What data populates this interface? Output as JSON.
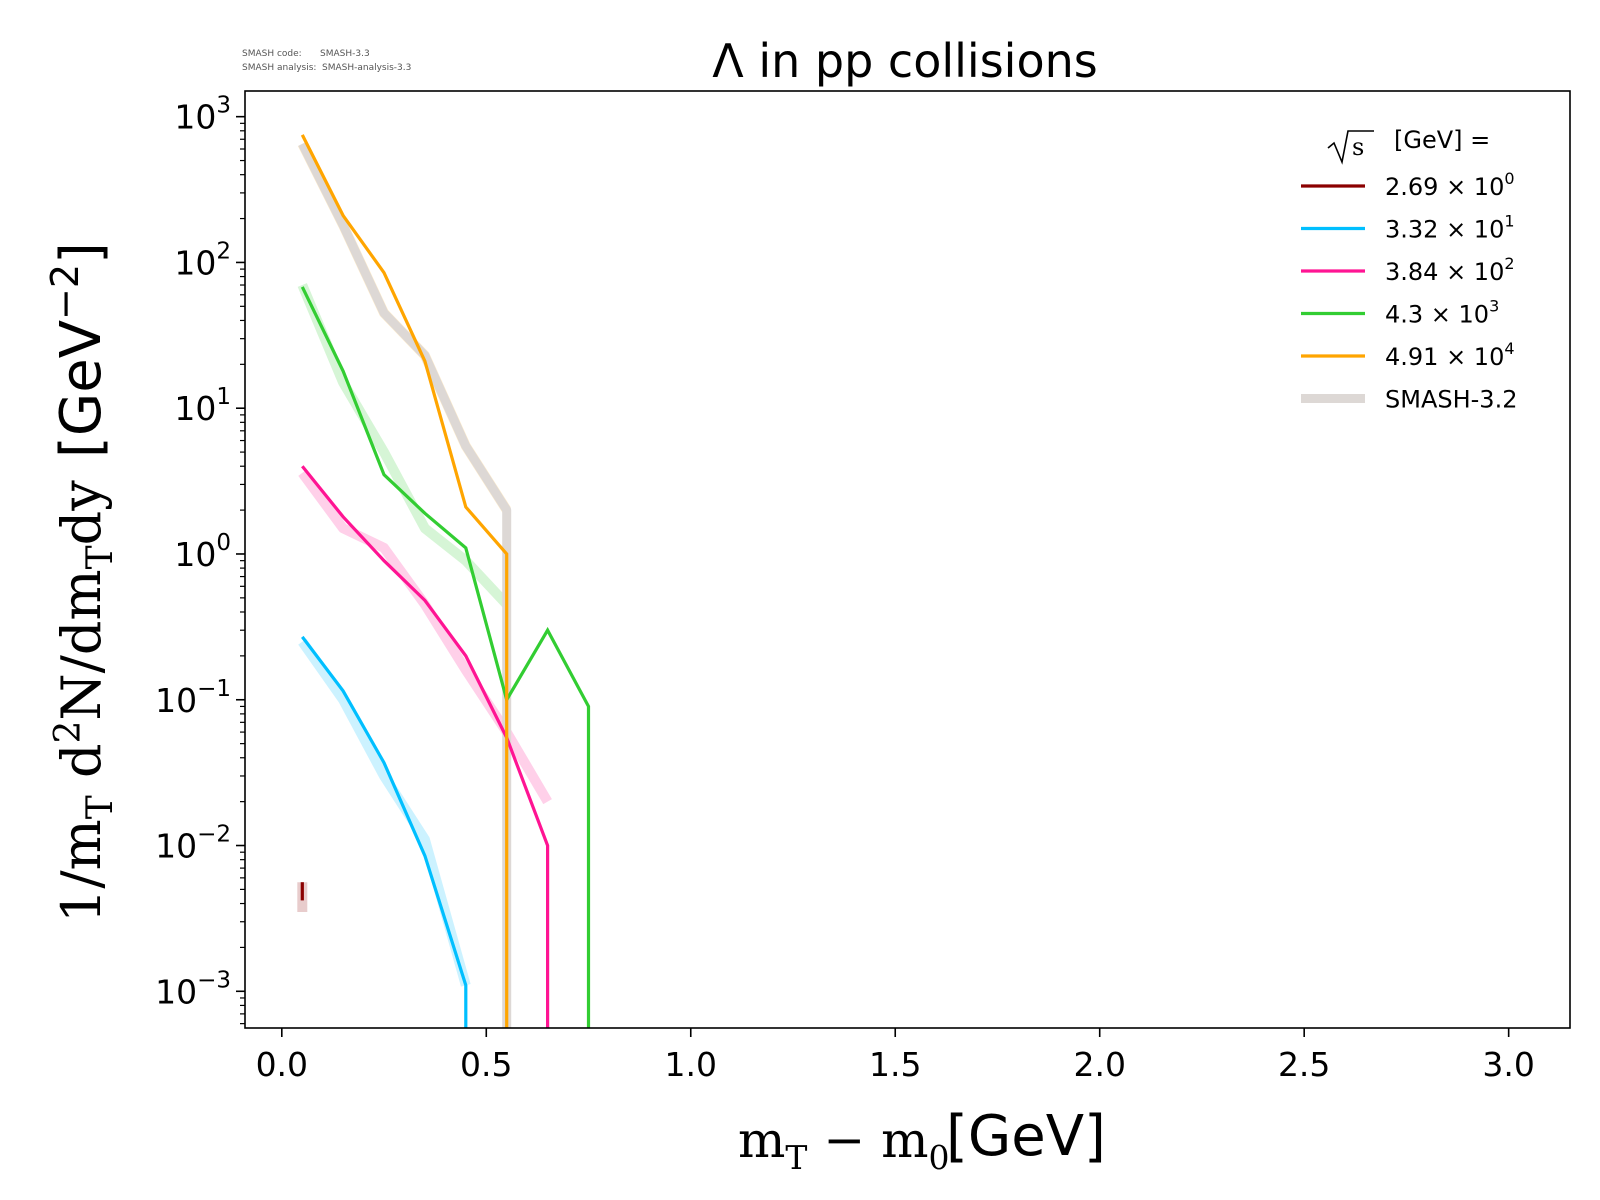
{
  "meta": {
    "code_label": "SMASH code:",
    "code_value": "SMASH-3.3",
    "analysis_label": "SMASH analysis:",
    "analysis_value": "SMASH-analysis-3.3"
  },
  "chart_data": {
    "type": "line",
    "title": "Λ in pp collisions",
    "xlabel": "m_T − m_0 [GeV]",
    "ylabel": "1/m_T d²N/dm_Tdy [GeV⁻²]",
    "x_axis": {
      "scale": "linear",
      "range": [
        -0.09,
        3.15
      ],
      "ticks": [
        "0.0",
        "0.5",
        "1.0",
        "1.5",
        "2.0",
        "2.5",
        "3.0"
      ]
    },
    "y_axis": {
      "scale": "log",
      "range": [
        0.00056,
        1500
      ],
      "ticks": [
        "10^-3",
        "10^-2",
        "10^-1",
        "10^0",
        "10^1",
        "10^2",
        "10^3"
      ]
    },
    "legend_title": "√s  [GeV] =",
    "legend_position": "top-right",
    "series": [
      {
        "name": "2.69 × 10^0",
        "color": "#8b0000",
        "x": [
          0.05,
          0.05
        ],
        "y": [
          0.0056,
          0.0042
        ],
        "ref": {
          "x": [
            0.05,
            0.05
          ],
          "y": [
            0.0056,
            0.0035
          ]
        }
      },
      {
        "name": "3.32 × 10^1",
        "color": "#00bfff",
        "x": [
          0.05,
          0.15,
          0.25,
          0.35,
          0.45,
          0.45
        ],
        "y": [
          0.27,
          0.115,
          0.037,
          0.0085,
          0.0011,
          0.00056
        ],
        "ref": {
          "x": [
            0.05,
            0.15,
            0.25,
            0.35,
            0.45
          ],
          "y": [
            0.25,
            0.1,
            0.03,
            0.011,
            0.0011
          ]
        }
      },
      {
        "name": "3.84 × 10^2",
        "color": "#ff1493",
        "x": [
          0.05,
          0.15,
          0.25,
          0.35,
          0.45,
          0.55,
          0.65,
          0.65
        ],
        "y": [
          4.0,
          1.8,
          0.9,
          0.48,
          0.2,
          0.055,
          0.01,
          0.00056
        ],
        "ref": {
          "x": [
            0.05,
            0.15,
            0.25,
            0.35,
            0.45,
            0.55,
            0.65
          ],
          "y": [
            3.6,
            1.5,
            1.1,
            0.45,
            0.16,
            0.06,
            0.02
          ]
        }
      },
      {
        "name": "4.3 × 10^3",
        "color": "#32cd32",
        "x": [
          0.05,
          0.15,
          0.25,
          0.35,
          0.45,
          0.55,
          0.65,
          0.75,
          0.75
        ],
        "y": [
          68,
          18,
          3.5,
          1.9,
          1.1,
          0.1,
          0.3,
          0.09,
          0.00056
        ],
        "ref": {
          "x": [
            0.05,
            0.15,
            0.25,
            0.35,
            0.45,
            0.55
          ],
          "y": [
            70,
            15,
            5,
            1.5,
            0.9,
            0.45
          ]
        }
      },
      {
        "name": "4.91 × 10^4",
        "color": "#ffa500",
        "x": [
          0.05,
          0.15,
          0.25,
          0.35,
          0.45,
          0.55,
          0.55
        ],
        "y": [
          750,
          210,
          85,
          21,
          2.1,
          1.0,
          0.00056
        ],
        "ref": {
          "x": [
            0.05,
            0.15,
            0.25,
            0.35,
            0.45,
            0.55
          ],
          "y": [
            650,
            180,
            45,
            23,
            5.5,
            2.0
          ]
        }
      }
    ],
    "reference": {
      "name": "SMASH-3.2",
      "color": "#ddd8d5",
      "x": [
        0.05,
        0.15,
        0.25,
        0.35,
        0.45,
        0.55,
        0.55
      ],
      "y": [
        650,
        180,
        45,
        23,
        5.5,
        2.0,
        0.00056
      ]
    }
  }
}
